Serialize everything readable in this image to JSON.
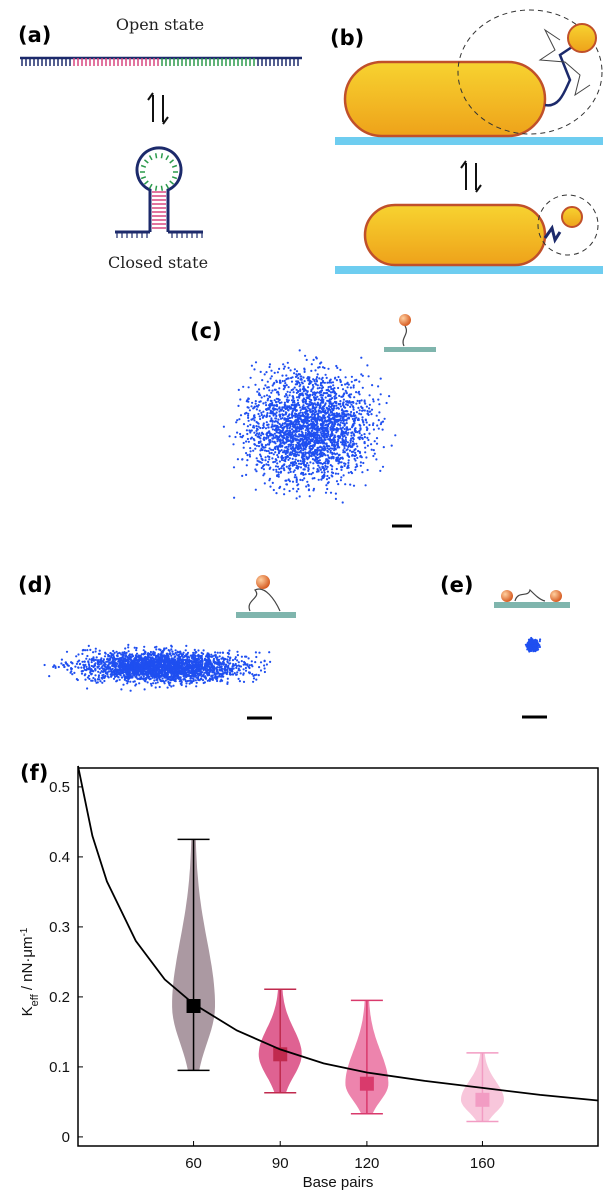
{
  "panels": {
    "a": {
      "label": "(a)",
      "top_text": "Open state",
      "bottom_text": "Closed state"
    },
    "b": {
      "label": "(b)"
    },
    "c": {
      "label": "(c)"
    },
    "d": {
      "label": "(d)"
    },
    "e": {
      "label": "(e)"
    }
  },
  "chart_data": {
    "type": "violin",
    "label": "(f)",
    "x_label": "Base pairs",
    "y_label": {
      "main": "K",
      "sub": "eff",
      "unit": " / nN·μm",
      "sup": "-1"
    },
    "x": [
      60,
      90,
      120,
      160
    ],
    "values": [
      0.187,
      0.118,
      0.076,
      0.053
    ],
    "low": [
      0.095,
      0.063,
      0.033,
      0.022
    ],
    "high": [
      0.425,
      0.211,
      0.195,
      0.12
    ],
    "colors": [
      "#9c8792",
      "#d9467f",
      "#ea6f9f",
      "#f7bcd5"
    ],
    "box_colors": [
      "#000000",
      "#c02a4e",
      "#d93a6c",
      "#f29cc3"
    ],
    "fit": {
      "x": [
        20,
        25,
        30,
        40,
        50,
        60,
        75,
        90,
        105,
        120,
        140,
        160,
        180,
        200
      ],
      "y": [
        0.53,
        0.43,
        0.365,
        0.28,
        0.225,
        0.19,
        0.152,
        0.125,
        0.105,
        0.092,
        0.08,
        0.07,
        0.06,
        0.052
      ],
      "color": "#000000"
    },
    "xlim": [
      20,
      200
    ],
    "ylim": [
      -0.013,
      0.527
    ],
    "xticks": [
      60,
      90,
      120,
      160
    ],
    "yticks": [
      0,
      0.1,
      0.2,
      0.3,
      0.4,
      0.5
    ]
  }
}
